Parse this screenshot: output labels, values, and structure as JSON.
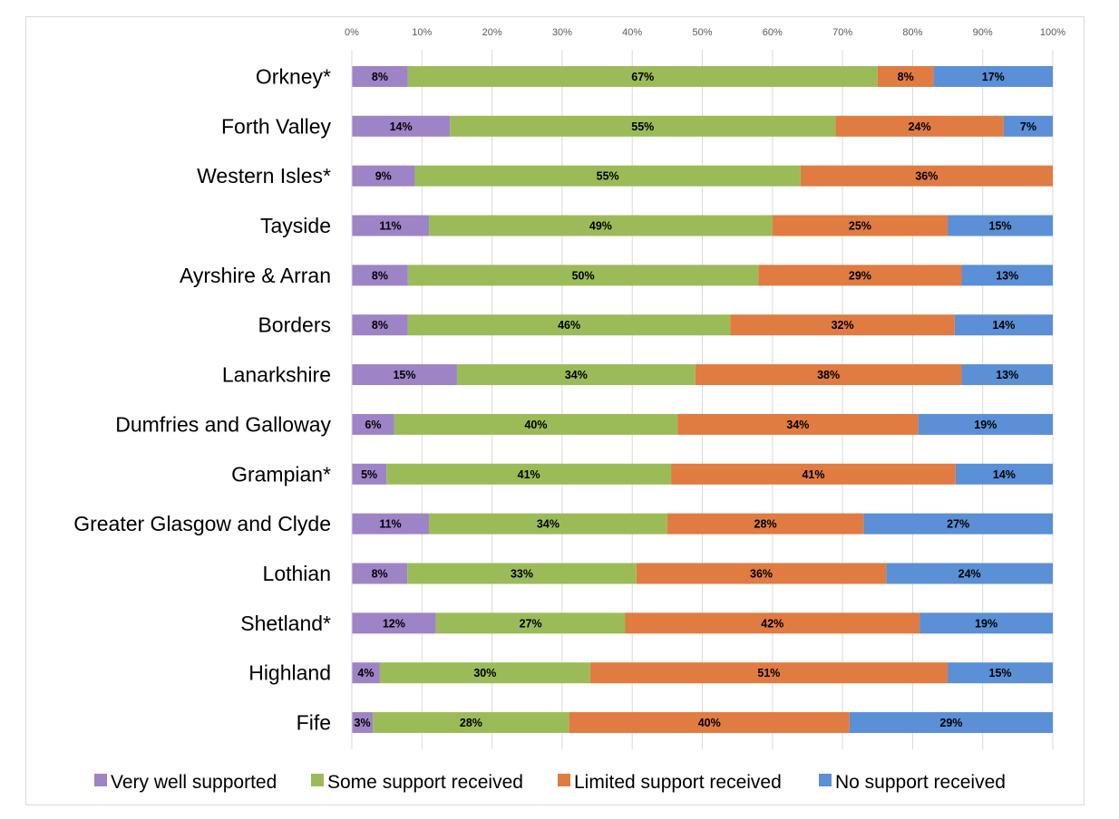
{
  "chart_data": {
    "type": "bar",
    "orientation": "horizontal",
    "stacked": "percent",
    "title": "",
    "xlabel": "",
    "ylabel": "",
    "xlim": [
      0,
      100
    ],
    "x_ticks": [
      "0%",
      "10%",
      "20%",
      "30%",
      "40%",
      "50%",
      "60%",
      "70%",
      "80%",
      "90%",
      "100%"
    ],
    "x_axis_position": "top",
    "grid": true,
    "legend_position": "bottom",
    "categories": [
      "Orkney*",
      "Forth Valley",
      "Western Isles*",
      "Tayside",
      "Ayrshire & Arran",
      "Borders",
      "Lanarkshire",
      "Dumfries and Galloway",
      "Grampian*",
      "Greater Glasgow and Clyde",
      "Lothian",
      "Shetland*",
      "Highland",
      "Fife"
    ],
    "series": [
      {
        "name": "Very well supported",
        "color": "#9e84c6",
        "values": [
          8,
          14,
          9,
          11,
          8,
          8,
          15,
          6,
          5,
          11,
          8,
          12,
          4,
          3
        ],
        "labels": [
          "8%",
          "14%",
          "9%",
          "11%",
          "8%",
          "8%",
          "15%",
          "6%",
          "5%",
          "11%",
          "8%",
          "12%",
          "4%",
          "3%"
        ]
      },
      {
        "name": "Some support received",
        "color": "#9bbb59",
        "values": [
          67,
          55,
          55,
          49,
          50,
          46,
          34,
          40,
          41,
          34,
          33,
          27,
          30,
          28
        ],
        "labels": [
          "67%",
          "55%",
          "55%",
          "49%",
          "50%",
          "46%",
          "34%",
          "40%",
          "41%",
          "34%",
          "33%",
          "27%",
          "30%",
          "28%"
        ]
      },
      {
        "name": "Limited support received",
        "color": "#e07b42",
        "values": [
          8,
          24,
          36,
          25,
          29,
          32,
          38,
          34,
          41,
          28,
          36,
          42,
          51,
          40
        ],
        "labels": [
          "8%",
          "24%",
          "36%",
          "25%",
          "29%",
          "32%",
          "38%",
          "34%",
          "41%",
          "28%",
          "36%",
          "42%",
          "51%",
          "40%"
        ]
      },
      {
        "name": "No support received",
        "color": "#5b8fd6",
        "values": [
          17,
          7,
          0,
          15,
          13,
          14,
          13,
          19,
          14,
          27,
          24,
          19,
          15,
          29
        ],
        "labels": [
          "17%",
          "7%",
          "",
          "15%",
          "13%",
          "14%",
          "13%",
          "19%",
          "14%",
          "27%",
          "24%",
          "19%",
          "15%",
          "29%"
        ]
      }
    ]
  }
}
